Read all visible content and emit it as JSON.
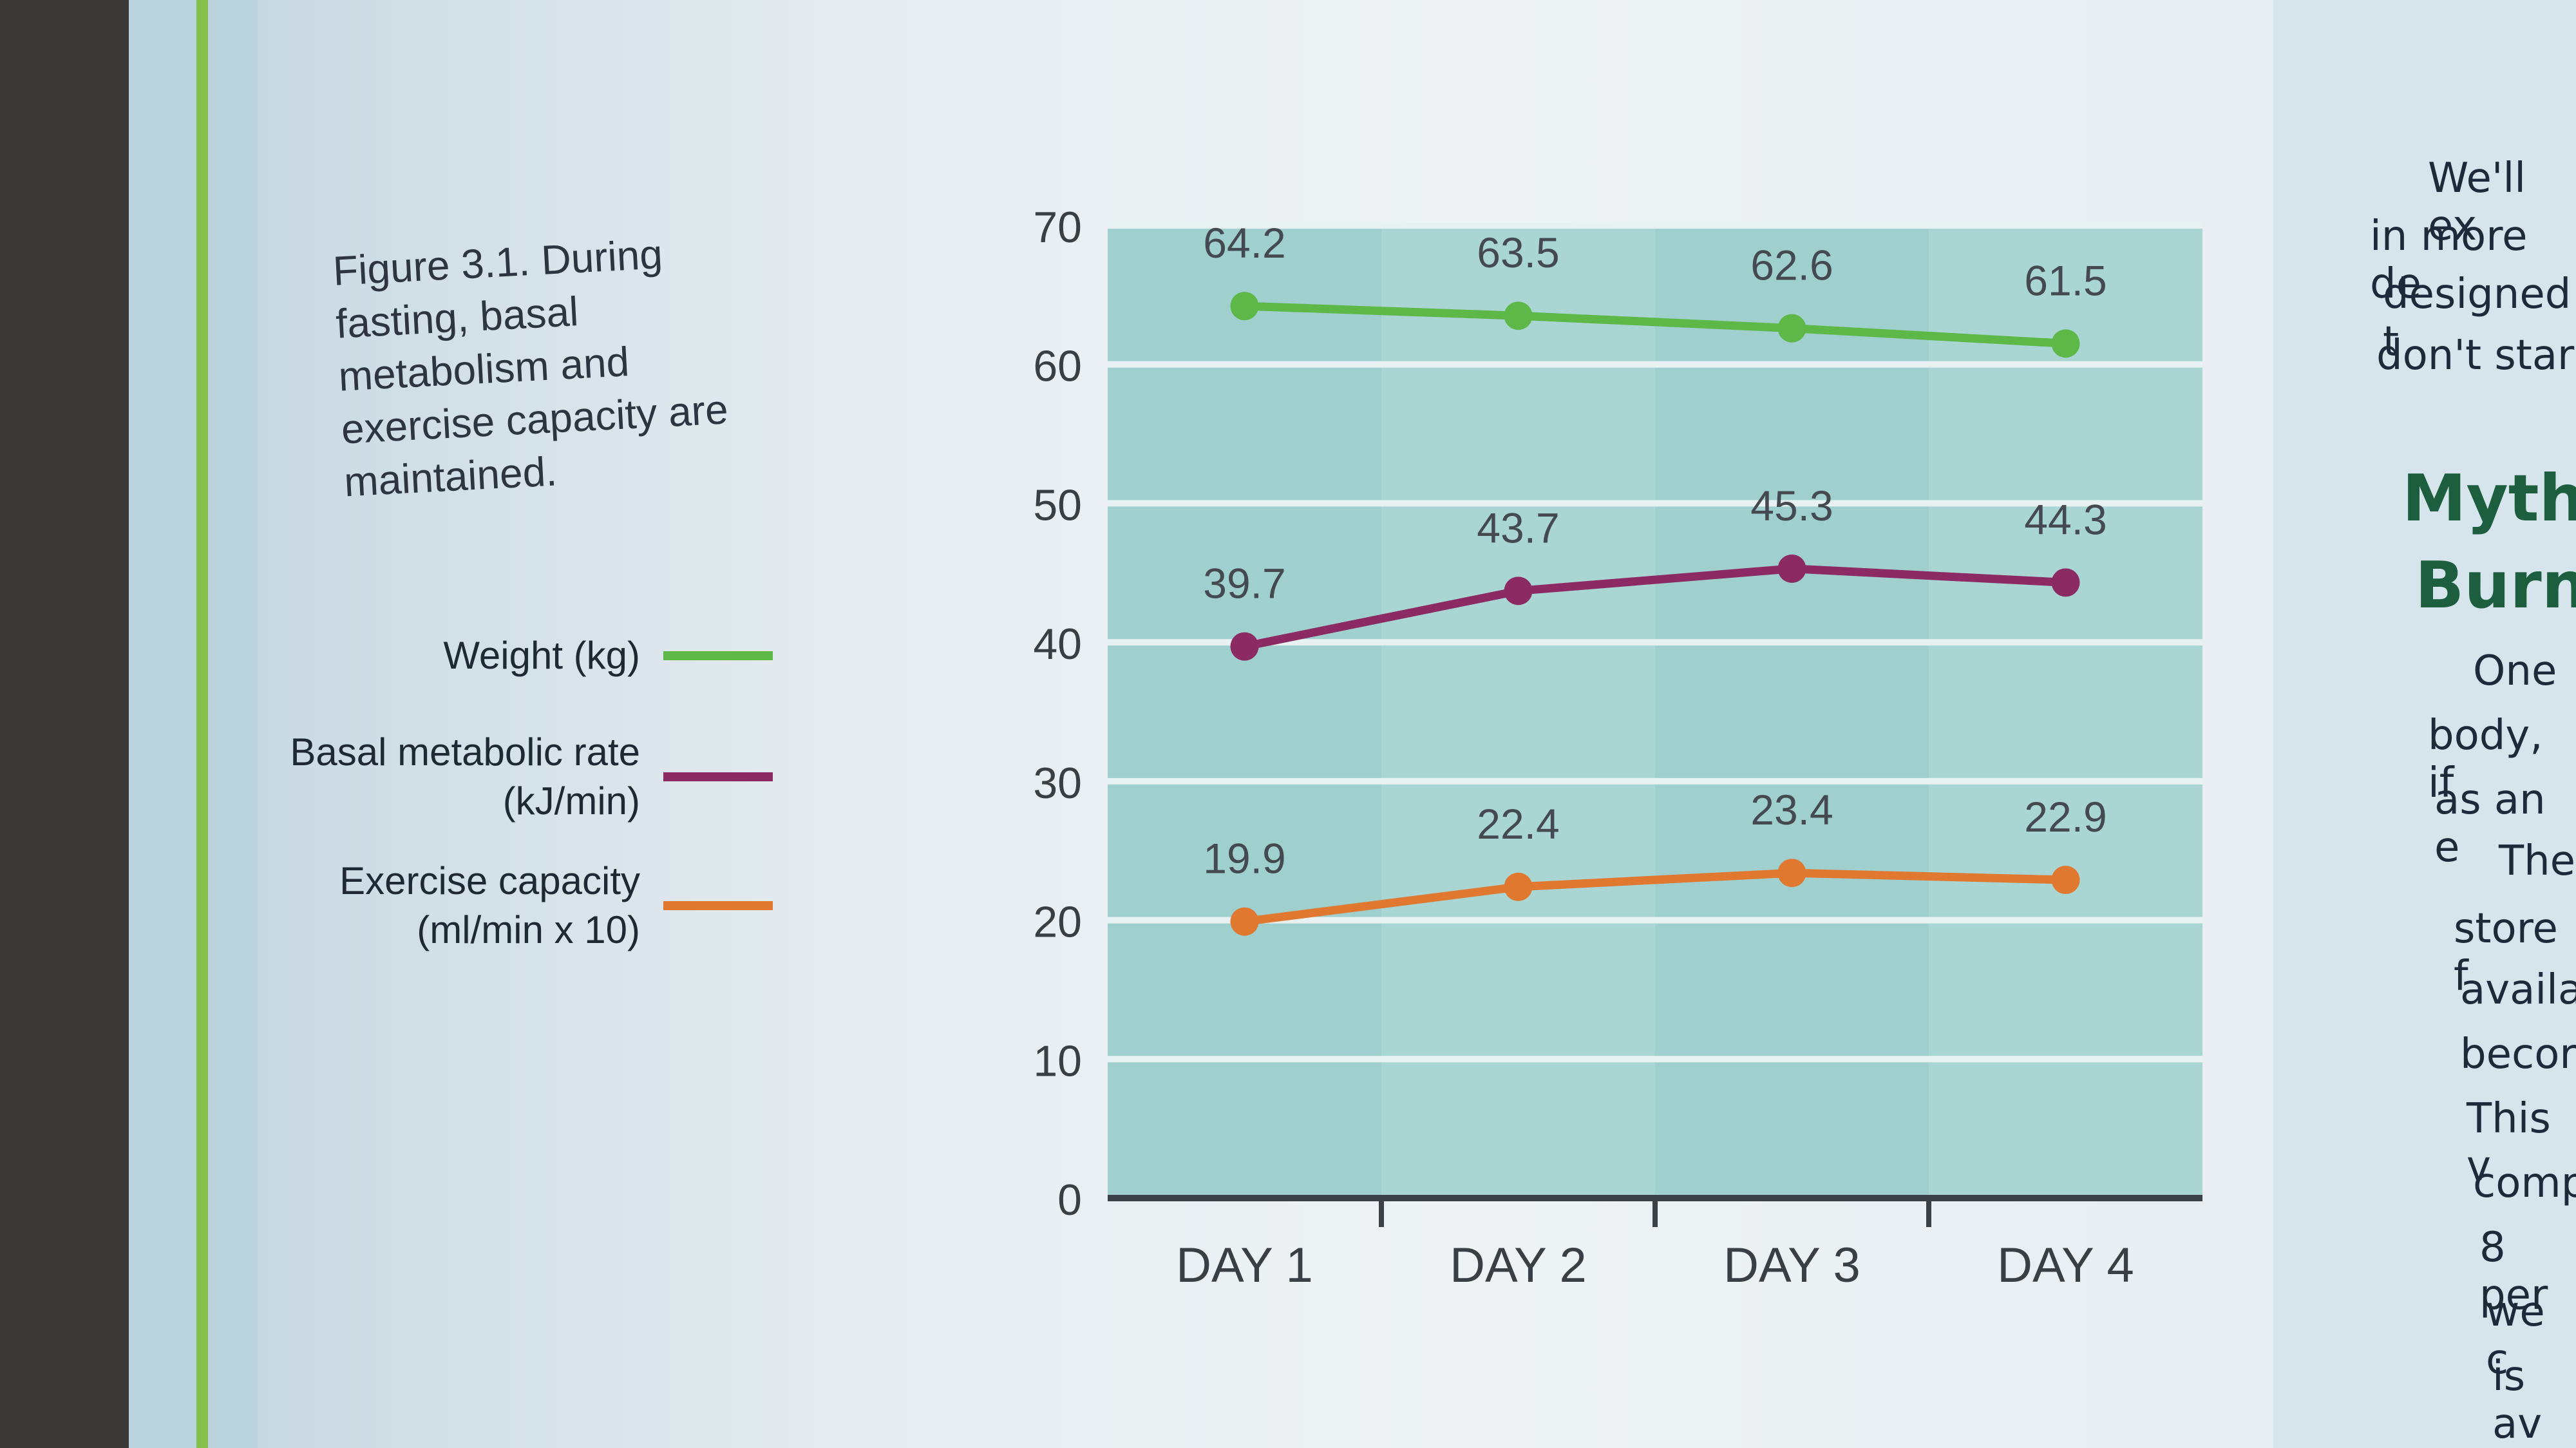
{
  "caption": "Figure 3.1. During fasting, basal metabolism and exercise capacity are maintained.",
  "legend": [
    {
      "label": "Weight (kg)",
      "color": "#5db848"
    },
    {
      "label": "Basal metabolic rate (kJ/min)",
      "color": "#8c2b63"
    },
    {
      "label": "Exercise capacity (ml/min x 10)",
      "color": "#e07830"
    }
  ],
  "right_page": {
    "lines": [
      "We'll ex",
      "in more de",
      "designed t",
      "don't star"
    ],
    "heading": [
      "Myth",
      "Burn"
    ],
    "lines2": [
      "One",
      "body, if",
      "as an e",
      "The",
      "store f",
      "availa",
      "becor",
      "This v",
      "comp",
      "8 per",
      "we c",
      "is av"
    ]
  },
  "chart_data": {
    "type": "line",
    "categories": [
      "DAY 1",
      "DAY 2",
      "DAY 3",
      "DAY 4"
    ],
    "ylim": [
      0,
      70
    ],
    "yticks": [
      0,
      10,
      20,
      30,
      40,
      50,
      60,
      70
    ],
    "grid": true,
    "series": [
      {
        "name": "Weight (kg)",
        "values": [
          64.2,
          63.5,
          62.6,
          61.5
        ],
        "color": "#5db848"
      },
      {
        "name": "Basal metabolic rate (kJ/min)",
        "values": [
          39.7,
          43.7,
          45.3,
          44.3
        ],
        "color": "#8c2b63"
      },
      {
        "name": "Exercise capacity (ml/min x 10)",
        "values": [
          19.9,
          22.4,
          23.4,
          22.9
        ],
        "color": "#e07830"
      }
    ]
  }
}
